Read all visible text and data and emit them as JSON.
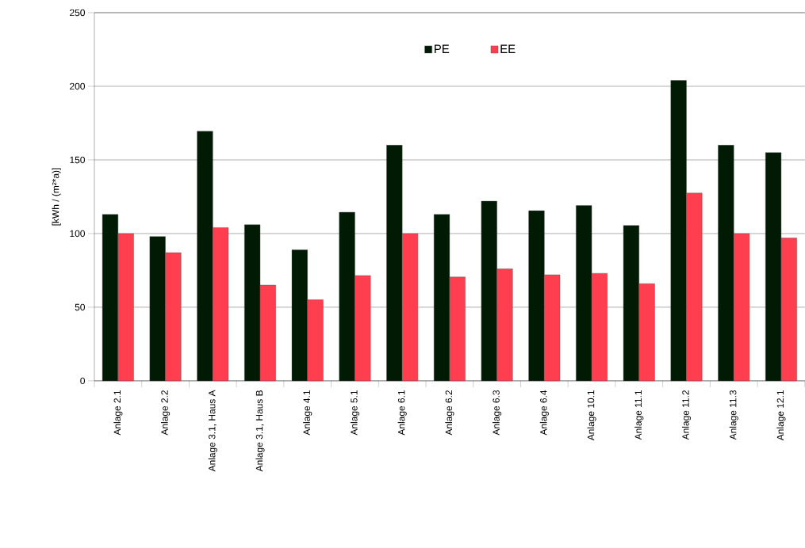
{
  "chart_data": {
    "type": "bar",
    "ylabel": "[kWh / (m²*a)]",
    "categories": [
      "Anlage 2.1",
      "Anlage 2.2",
      "Anlage 3.1, Haus A",
      "Anlage 3.1, Haus B",
      "Anlage 4.1",
      "Anlage 5.1",
      "Anlage 6.1",
      "Anlage 6.2",
      "Anlage 6.3",
      "Anlage 6.4",
      "Anlage 10.1",
      "Anlage 11.1",
      "Anlage 11.2",
      "Anlage 11.3",
      "Anlage 12.1"
    ],
    "series": [
      {
        "name": "PE",
        "color": "#001a04",
        "values": [
          113,
          98,
          169.5,
          106,
          89,
          114.5,
          160,
          113,
          122,
          115.5,
          119,
          105.5,
          204,
          160,
          155
        ]
      },
      {
        "name": "EE",
        "color": "#ff3f4f",
        "values": [
          100,
          87,
          104,
          65,
          55,
          71.5,
          100,
          70.5,
          76,
          72,
          73,
          66,
          127.5,
          100,
          97
        ]
      }
    ],
    "ylim": [
      0,
      250
    ],
    "yticks": [
      0,
      50,
      100,
      150,
      200,
      250
    ],
    "grid": "y",
    "legend": "top"
  }
}
